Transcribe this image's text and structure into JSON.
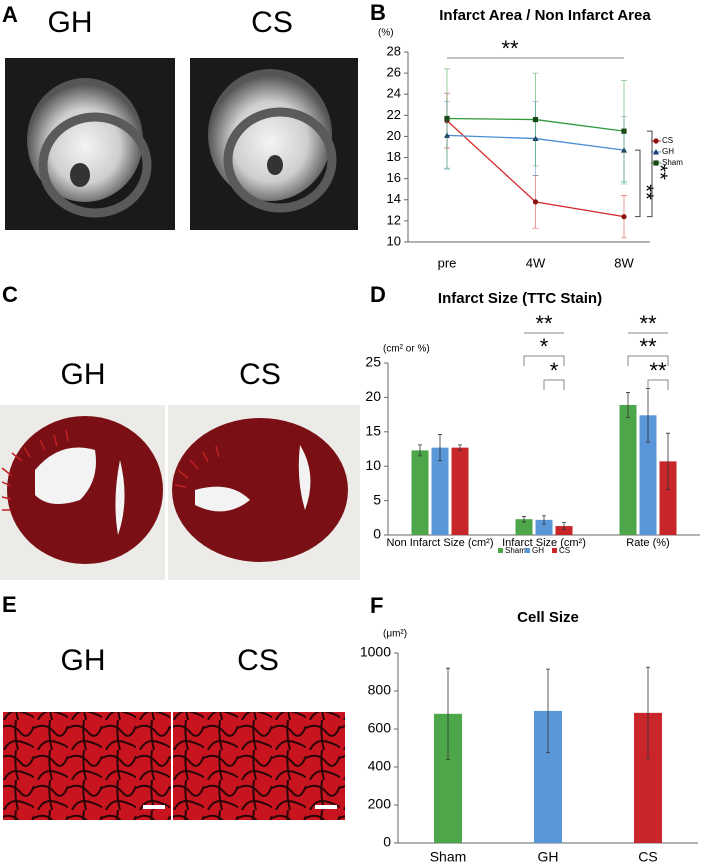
{
  "panels": {
    "labels": [
      "A",
      "B",
      "C",
      "D",
      "E",
      "F"
    ]
  },
  "images": {
    "A": [
      "GH",
      "CS"
    ],
    "C": [
      "GH",
      "CS"
    ],
    "E": [
      "GH",
      "CS"
    ]
  },
  "chart_data": [
    {
      "type": "line",
      "title": "Infarct Area / Non Infarct Area",
      "y_unit_label": "(%)",
      "categories": [
        "pre",
        "4W",
        "8W"
      ],
      "series": [
        {
          "name": "CS",
          "color": "#d42a2a",
          "marker": "circle",
          "values": [
            21.5,
            13.8,
            12.4
          ],
          "errors": [
            2.6,
            2.5,
            2.0
          ]
        },
        {
          "name": "GH",
          "color": "#4a8fd4",
          "marker": "triangle",
          "values": [
            20.1,
            19.8,
            18.7
          ],
          "errors": [
            3.2,
            3.5,
            3.2
          ]
        },
        {
          "name": "Sham",
          "color": "#2e9a3a",
          "marker": "square",
          "values": [
            21.7,
            21.6,
            20.5
          ],
          "errors": [
            4.7,
            4.4,
            4.8
          ]
        }
      ],
      "ylim": [
        10,
        28
      ],
      "yticks": [
        10,
        12,
        14,
        16,
        18,
        20,
        22,
        24,
        26,
        28
      ],
      "legend": "right",
      "annotations": [
        "**",
        "**",
        "**"
      ]
    },
    {
      "type": "bar",
      "title": "Infarct Size (TTC Stain)",
      "y_unit_label": "(cm² or %)",
      "categories": [
        "Non Infarct Size (cm²)",
        "Infarct Size (cm²)",
        "Rate (%)"
      ],
      "series": [
        {
          "name": "Sham",
          "color": "#4ea64a",
          "values": [
            12.3,
            2.3,
            18.9
          ],
          "errors": [
            0.8,
            0.4,
            1.8
          ]
        },
        {
          "name": "GH",
          "color": "#5a97d8",
          "values": [
            12.7,
            2.2,
            17.4
          ],
          "errors": [
            1.9,
            0.6,
            3.9
          ]
        },
        {
          "name": "CS",
          "color": "#c8262a",
          "values": [
            12.7,
            1.3,
            10.7
          ],
          "errors": [
            0.4,
            0.5,
            4.1
          ]
        }
      ],
      "ylim": [
        0,
        25
      ],
      "yticks": [
        0,
        5,
        10,
        15,
        20,
        25
      ],
      "legend": "bottom",
      "annotations": [
        "**",
        "*",
        "*",
        "**",
        "**",
        "**"
      ]
    },
    {
      "type": "bar",
      "title": "Cell Size",
      "y_unit_label": "(μm²)",
      "categories": [
        "Sham",
        "GH",
        "CS"
      ],
      "values": [
        680,
        695,
        685
      ],
      "errors": [
        240,
        220,
        240
      ],
      "colors": [
        "#4ea64a",
        "#5a97d8",
        "#c8262a"
      ],
      "ylim": [
        0,
        1000
      ],
      "yticks": [
        0,
        200,
        400,
        600,
        800,
        1000
      ]
    }
  ]
}
